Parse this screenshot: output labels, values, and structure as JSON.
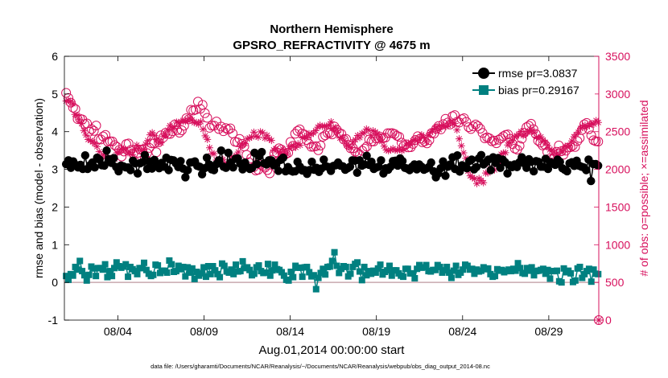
{
  "chart_data": {
    "type": "line",
    "title": "Northern Hemisphere",
    "subtitle": "GPSRO_REFRACTIVITY @ 4675 m",
    "xlabel": "Aug.01,2014 00:00:00 start",
    "ylabel": "rmse and bias (model - observation)",
    "y2label": "# of obs: o=possible; ×=assimilated",
    "footnote": "data file: /Users/gharamti/Documents/NCAR/Reanalysis/~/Documents/NCAR/Reanalysis/webpub/obs_diag_output_2014-08.nc",
    "xlim": [
      0.9,
      31.9
    ],
    "ylim": [
      -1,
      6
    ],
    "y2lim": [
      0,
      3500
    ],
    "x_ticks": [
      {
        "value": 4,
        "label": "08/04"
      },
      {
        "value": 9,
        "label": "08/09"
      },
      {
        "value": 14,
        "label": "08/14"
      },
      {
        "value": 19,
        "label": "08/19"
      },
      {
        "value": 24,
        "label": "08/24"
      },
      {
        "value": 29,
        "label": "08/29"
      }
    ],
    "y_ticks": [
      "-1",
      "0",
      "1",
      "2",
      "3",
      "4",
      "5",
      "6"
    ],
    "y2_ticks": [
      "0",
      "500",
      "1000",
      "1500",
      "2000",
      "2500",
      "3000",
      "3500"
    ],
    "legend_position": "top-right",
    "series": [
      {
        "name": "rmse",
        "legend": "rmse pr=3.0837",
        "color": "#000000",
        "marker": "circle",
        "axis": "left",
        "values": [
          3.14,
          3.24,
          3.04,
          3.21,
          3.12,
          3.05,
          3.12,
          3.01,
          3.37,
          3.01,
          3.11,
          3.18,
          3.05,
          3.31,
          3.26,
          3.11,
          3.1,
          3.5,
          3.27,
          3.17,
          3.3,
          3.06,
          2.95,
          3.1,
          3.08,
          3.05,
          3.05,
          2.98,
          3.23,
          3.16,
          2.89,
          3.16,
          3.19,
          3.38,
          3.01,
          3.21,
          3.02,
          3.25,
          3.14,
          3.03,
          3.17,
          3.07,
          3.31,
          2.98,
          3.25,
          3.24,
          3.16,
          3.06,
          3.22,
          3.02,
          2.79,
          2.98,
          3.18,
          3.19,
          3.21,
          3.09,
          3.07,
          2.87,
          3.03,
          3.31,
          3.13,
          3.0,
          2.98,
          3.14,
          3.24,
          3.5,
          3.07,
          3.04,
          3.44,
          3.18,
          3.05,
          3.28,
          3.29,
          3.15,
          3.0,
          3.18,
          3.06,
          3.01,
          3.04,
          3.44,
          3.14,
          3.35,
          3.46,
          3.16,
          3.13,
          3.24,
          3.24,
          3.11,
          3.16,
          2.96,
          3.25,
          3.31,
          2.95,
          3.06,
          2.97,
          2.94,
          2.95,
          3.2,
          3.07,
          2.97,
          2.98,
          2.88,
          2.98,
          3.2,
          2.99,
          3.04,
          2.93,
          3.02,
          3.26,
          3.08,
          3.06,
          2.96,
          3.09,
          3.11,
          3.18,
          3.1,
          3.08,
          2.99,
          3.03,
          3.07,
          3.24,
          3.23,
          2.91,
          3.24,
          3.1,
          3.13,
          3.36,
          3.12,
          3.2,
          3.01,
          3.05,
          3.07,
          3.24,
          2.89,
          3.03,
          2.99,
          3.07,
          3.22,
          3.23,
          3.1,
          3.29,
          3.22,
          3.04,
          3.02,
          2.98,
          3.07,
          3.13,
          3.0,
          3.13,
          3.07,
          2.99,
          3.02,
          3.06,
          3.18,
          2.95,
          2.79,
          2.89,
          3.03,
          3.21,
          2.83,
          3.07,
          3.13,
          3.32,
          3.01,
          3.37,
          2.94,
          3.11,
          3.08,
          3.03,
          3.22,
          3.26,
          3.0,
          3.06,
          3.29,
          3.38,
          3.13,
          3.19,
          3.26,
          2.98,
          3.32,
          3.17,
          3.3,
          3.04,
          3.26,
          3.19,
          2.89,
          3.11,
          3.06,
          3.13,
          3.06,
          3.19,
          3.32,
          3.16,
          3.04,
          3.27,
          3.2,
          2.95,
          3.22,
          3.2,
          3.07,
          3.07,
          3.28,
          3.01,
          3.19,
          3.16,
          3.12,
          3.26,
          3.2,
          3.03,
          2.99,
          2.95,
          3.16,
          3.19,
          3.09,
          3.23,
          3.1,
          3.07,
          3.05,
          2.98,
          3.26,
          2.69,
          3.14,
          3.14,
          3.1
        ]
      },
      {
        "name": "bias",
        "legend": "bias pr=0.29167",
        "color": "#008080",
        "marker": "square",
        "axis": "left",
        "values": [
          0.17,
          0.07,
          0.22,
          0.18,
          0.41,
          0.34,
          0.57,
          0.3,
          0.19,
          0.05,
          0.2,
          0.42,
          0.37,
          0.17,
          0.38,
          0.38,
          0.34,
          0.48,
          0.14,
          0.3,
          0.17,
          0.38,
          0.53,
          0.43,
          0.39,
          0.42,
          0.48,
          0.15,
          0.41,
          0.35,
          0.3,
          0.22,
          0.38,
          0.38,
          0.52,
          0.33,
          0.23,
          0.17,
          0.2,
          0.47,
          0.45,
          0.25,
          0.31,
          0.31,
          0.26,
          0.58,
          0.48,
          0.28,
          0.3,
          0.44,
          0.35,
          0.41,
          0.16,
          0.4,
          0.26,
          0.37,
          0.09,
          0.28,
          0.18,
          0.24,
          0.4,
          0.15,
          0.43,
          0.22,
          0.43,
          0.32,
          0.22,
          0.14,
          0.5,
          0.44,
          0.29,
          0.26,
          0.34,
          0.22,
          0.47,
          0.29,
          0.3,
          0.56,
          0.38,
          0.4,
          0.33,
          0.19,
          0.23,
          0.4,
          0.45,
          0.3,
          0.25,
          0.26,
          0.49,
          0.18,
          0.32,
          0.47,
          0.35,
          0.33,
          0.27,
          0.18,
          0.07,
          0.05,
          0.28,
          0.14,
          0.44,
          0.39,
          0.39,
          0.15,
          0.4,
          0.41,
          0.27,
          0.16,
          0.19,
          -0.18,
          0.12,
          0.25,
          0.36,
          0.21,
          0.41,
          0.42,
          0.57,
          0.8,
          0.44,
          0.25,
          0.36,
          0.43,
          0.41,
          0.16,
          0.23,
          0.41,
          0.49,
          0.53,
          0.29,
          0.06,
          0.41,
          0.19,
          0.3,
          0.23,
          0.31,
          0.26,
          0.37,
          0.47,
          0.21,
          0.28,
          0.32,
          0.44,
          0.18,
          0.32,
          0.32,
          0.24,
          0.18,
          0.15,
          0.36,
          0.36,
          0.24,
          0.24,
          0.11,
          0.36,
          0.46,
          0.39,
          0.4,
          0.46,
          0.3,
          0.29,
          0.33,
          0.33,
          0.46,
          0.41,
          0.26,
          0.32,
          0.41,
          0.26,
          0.12,
          0.31,
          0.44,
          0.2,
          0.26,
          0.34,
          0.47,
          0.44,
          0.34,
          0.36,
          0.23,
          0.34,
          0.29,
          0.31,
          0.4,
          0.35,
          0.37,
          0.22,
          0.15,
          0.17,
          0.35,
          0.31,
          0.33,
          0.27,
          0.3,
          0.34,
          0.3,
          0.36,
          0.31,
          0.51,
          0.38,
          0.25,
          0.23,
          0.38,
          0.31,
          0.4,
          0.19,
          0.3,
          0.31,
          0.33,
          0.36,
          0.23,
          0.33,
          0.1,
          0.3,
          0.3,
          0.31,
          0.03,
          0.0,
          0.37,
          0.27,
          0.31,
          0.24,
          0.01,
          0.05,
          0.37,
          0.41,
          0.12,
          0.22,
          0.3,
          0.36,
          0.02,
          0.34,
          0.23,
          0.22
        ]
      },
      {
        "name": "possible",
        "legend": "o=possible",
        "color": "#d7105d",
        "marker": "open-circle",
        "axis": "right",
        "values": [
          3015,
          2947,
          2885,
          2819,
          2801,
          2667,
          2672,
          2662,
          2600,
          2609,
          2500,
          2534,
          2510,
          2581,
          2401,
          2397,
          2437,
          2457,
          2368,
          2373,
          2370,
          2321,
          2297,
          2257,
          2170,
          2237,
          2335,
          2343,
          2258,
          2210,
          2093,
          2219,
          2262,
          2263,
          2145,
          2216,
          2285,
          2345,
          2346,
          2227,
          2359,
          2452,
          2423,
          2485,
          2471,
          2470,
          2506,
          2595,
          2521,
          2486,
          2518,
          2579,
          2678,
          2664,
          2791,
          2781,
          2792,
          2898,
          2803,
          2856,
          2745,
          2684,
          2551,
          2580,
          2580,
          2634,
          2536,
          2568,
          2506,
          2547,
          2527,
          2544,
          2476,
          2366,
          2359,
          2403,
          2338,
          2304,
          2193,
          2094,
          2147,
          2027,
          1985,
          1994,
          2063,
          2043,
          2024,
          1990,
          1947,
          2127,
          2209,
          2227,
          2279,
          2263,
          2213,
          2204,
          2220,
          2363,
          2311,
          2473,
          2510,
          2530,
          2475,
          2464,
          2389,
          2341,
          2299,
          2301,
          2307,
          2254,
          2316,
          2433,
          2452,
          2482,
          2482,
          2464,
          2567,
          2527,
          2485,
          2471,
          2397,
          2403,
          2323,
          2280,
          2279,
          2234,
          2220,
          2196,
          2247,
          2276,
          2304,
          2395,
          2369,
          2370,
          2409,
          2414,
          2432,
          2414,
          2421,
          2479,
          2480,
          2481,
          2469,
          2445,
          2432,
          2354,
          2314,
          2332,
          2291,
          2294,
          2338,
          2390,
          2440,
          2407,
          2360,
          2372,
          2345,
          2388,
          2482,
          2474,
          2540,
          2574,
          2530,
          2600,
          2671,
          2621,
          2596,
          2705,
          2720,
          2631,
          2622,
          2667,
          2679,
          2630,
          2560,
          2535,
          2570,
          2595,
          2574,
          2540,
          2483,
          2411,
          2425,
          2411,
          2373,
          2381,
          2346,
          2393,
          2411,
          2440,
          2457,
          2464,
          2405,
          2336,
          2276,
          2262,
          2313,
          2407,
          2485,
          2559,
          2578,
          2605,
          2533,
          2470,
          2381,
          2356,
          2317,
          2325,
          2230,
          2145,
          2090,
          2146,
          2233,
          2317,
          2240,
          2194,
          2247,
          2290,
          2294,
          2315,
          2297,
          2375,
          2416,
          2525,
          2597,
          2616,
          2533,
          2450,
          2386,
          2373,
          2369
        ]
      },
      {
        "name": "assimilated",
        "legend": "×=assimilated",
        "color": "#d7105d",
        "marker": "asterisk",
        "axis": "right",
        "values": [
          2906,
          2915,
          2901,
          2871,
          2729,
          2716,
          2660,
          2606,
          2516,
          2454,
          2396,
          2383,
          2365,
          2339,
          2302,
          2234,
          2167,
          2196,
          2166,
          2151,
          2087,
          2158,
          2135,
          2219,
          2240,
          2268,
          2272,
          2251,
          2219,
          2226,
          2193,
          2271,
          2321,
          2282,
          2247,
          2263,
          2334,
          2382,
          2458,
          2486,
          2448,
          2391,
          2360,
          2352,
          2439,
          2458,
          2519,
          2579,
          2549,
          2565,
          2627,
          2614,
          2636,
          2637,
          2636,
          2656,
          2678,
          2653,
          2620,
          2622,
          2600,
          2633,
          2531,
          2445,
          2397,
          2286,
          2211,
          2207,
          2124,
          2110,
          2083,
          2134,
          2084,
          2047,
          2058,
          2167,
          2128,
          2186,
          2230,
          2304,
          2328,
          2344,
          2404,
          2414,
          2430,
          2493,
          2439,
          2428,
          2498,
          2488,
          2414,
          2452,
          2404,
          2384,
          2257,
          2277,
          2232,
          2218,
          2272,
          2219,
          2204,
          2277,
          2313,
          2313,
          2291,
          2340,
          2321,
          2418,
          2436,
          2417,
          2473,
          2464,
          2484,
          2513,
          2560,
          2583,
          2570,
          2574,
          2573,
          2585,
          2631,
          2545,
          2551,
          2493,
          2415,
          2421,
          2382,
          2324,
          2302,
          2290,
          2366,
          2393,
          2449,
          2421,
          2478,
          2483,
          2536,
          2519,
          2452,
          2512,
          2497,
          2471,
          2425,
          2369,
          2308,
          2255,
          2247,
          2256,
          2276,
          2254,
          2253,
          2272,
          2247,
          2262,
          2325,
          2347,
          2329,
          2376,
          2392,
          2381,
          2411,
          2458,
          2428,
          2370,
          2448,
          2492,
          2505,
          2544,
          2565,
          2528,
          2580,
          2584,
          2567,
          2584,
          2628,
          2605,
          2608,
          2522,
          2405,
          2313,
          2220,
          2147,
          1976,
          1914,
          1892,
          1874,
          1812,
          1880,
          1852,
          1823,
          1951,
          1952,
          2009,
          1985,
          1993,
          2081,
          2101,
          2201,
          2218,
          2221,
          2324,
          2351,
          2386,
          2434,
          2442,
          2467,
          2502,
          2447,
          2473,
          2499,
          2503,
          2514,
          2488,
          2429,
          2408,
          2432,
          2389,
          2359,
          2318,
          2259,
          2257,
          2230,
          2204,
          2186,
          2259,
          2232,
          2306,
          2296,
          2312,
          2377,
          2433,
          2462,
          2493,
          2543,
          2563,
          2586,
          2566,
          2586,
          2609,
          2601,
          2647,
          2622
        ]
      }
    ]
  }
}
